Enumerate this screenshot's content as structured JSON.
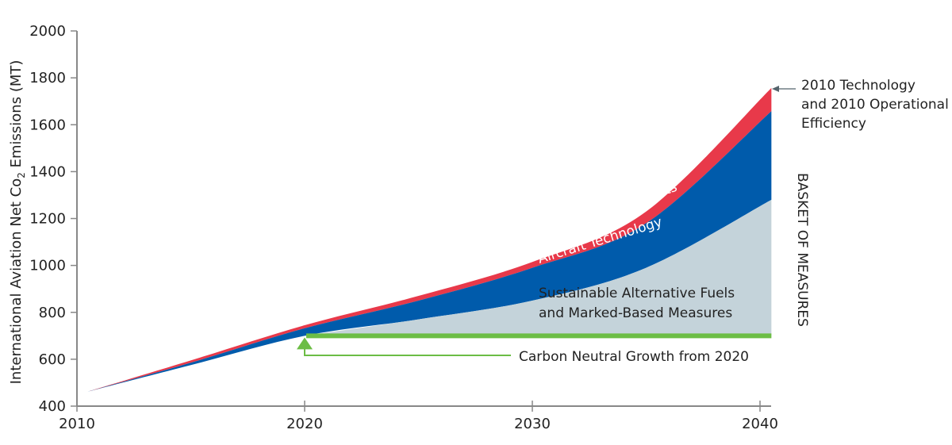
{
  "chart_data": {
    "type": "area",
    "title": "",
    "xlabel": "",
    "ylabel": "International Aviation Net Co2 Emissions (MT)",
    "ylabel_parts": {
      "main": "International Aviation Net Co",
      "sub": "2",
      "rest": " Emissions (MT)"
    },
    "xlim": [
      2010,
      2040.5
    ],
    "ylim": [
      400,
      2000
    ],
    "x_ticks": [
      2010,
      2020,
      2030,
      2040
    ],
    "x_tick_labels": [
      "2010",
      "2020",
      "2030",
      "2040"
    ],
    "y_ticks": [
      400,
      600,
      800,
      1000,
      1200,
      1400,
      1600,
      1800,
      2000
    ],
    "y_tick_labels": [
      "400",
      "600",
      "800",
      "1000",
      "1200",
      "1400",
      "1600",
      "1800",
      "2000"
    ],
    "grid": false,
    "x": [
      2010.4,
      2015,
      2020,
      2025,
      2030,
      2035,
      2040.5
    ],
    "series": [
      {
        "name": "2010 Technology and 2010 Operational Efficiency",
        "color": "#e8394a",
        "values": [
          460,
          595,
          745,
          870,
          1015,
          1230,
          1757
        ]
      },
      {
        "name": "Aircraft Technology top",
        "color": "#005bab",
        "values": [
          460,
          585,
          732,
          850,
          990,
          1180,
          1658
        ]
      },
      {
        "name": "Sustainable Alternative Fuels top",
        "color": "#c4d3da",
        "values": [
          460,
          575,
          700,
          770,
          850,
          990,
          1280
        ]
      },
      {
        "name": "Carbon Neutral Growth from 2020",
        "color": "#6cbd45",
        "values": [
          700,
          700
        ],
        "x": [
          2020,
          2040.5
        ]
      }
    ],
    "band_labels": {
      "operational": "Operational Improvements",
      "aircraft": "Aircraft Technology",
      "fuels_line1": "Sustainable Alternative Fuels",
      "fuels_line2": "and Marked-Based Measures"
    },
    "annotations": {
      "baseline_line1": "2010 Technology",
      "baseline_line2": "and 2010 Operational",
      "baseline_line3": "Efficiency",
      "carbon_neutral": "Carbon Neutral Growth from 2020",
      "basket": "BASKET OF MEASURES"
    }
  }
}
